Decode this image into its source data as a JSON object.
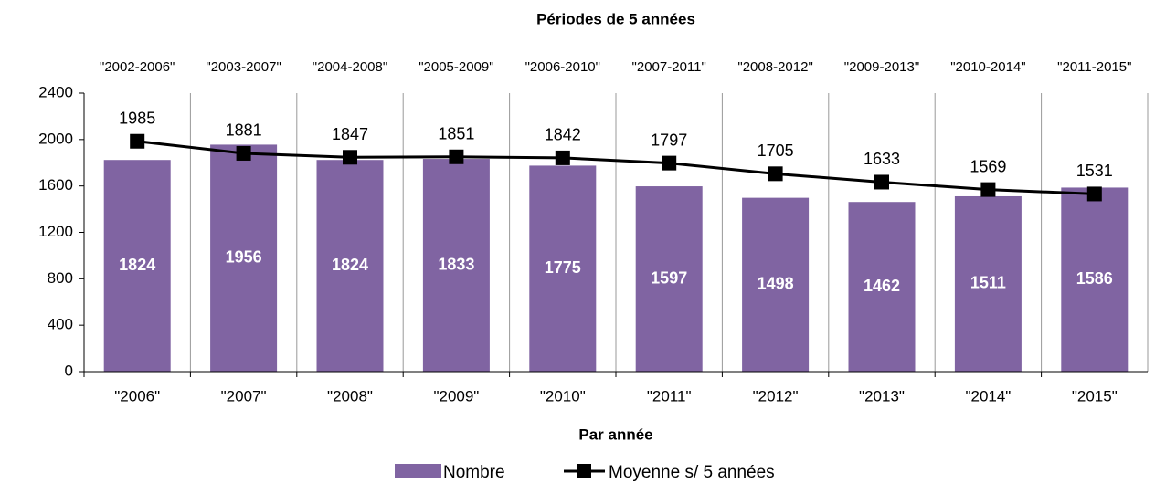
{
  "chart_data": {
    "type": "bar",
    "title": "Périodes de 5 années",
    "x_label": "Par année",
    "categories": [
      "\"2006\"",
      "\"2007\"",
      "\"2008\"",
      "\"2009\"",
      "\"2010\"",
      "\"2011\"",
      "\"2012\"",
      "\"2013\"",
      "\"2014\"",
      "\"2015\""
    ],
    "top_categories": [
      "\"2002-2006\"",
      "\"2003-2007\"",
      "\"2004-2008\"",
      "\"2005-2009\"",
      "\"2006-2010\"",
      "\"2007-2011\"",
      "\"2008-2012\"",
      "\"2009-2013\"",
      "\"2010-2014\"",
      "\"2011-2015\""
    ],
    "series": [
      {
        "name": "Nombre",
        "type": "bar",
        "color": "#8064a2",
        "values": [
          1824,
          1956,
          1824,
          1833,
          1775,
          1597,
          1498,
          1462,
          1511,
          1586
        ]
      },
      {
        "name": "Moyenne s/ 5 années",
        "type": "line",
        "color": "#000000",
        "values": [
          1985,
          1881,
          1847,
          1851,
          1842,
          1797,
          1705,
          1633,
          1569,
          1531
        ]
      }
    ],
    "ylim": [
      0,
      2400
    ],
    "yticks": [
      0,
      400,
      800,
      1200,
      1600,
      2000,
      2400
    ],
    "grid": "x",
    "legend": "bottom"
  }
}
